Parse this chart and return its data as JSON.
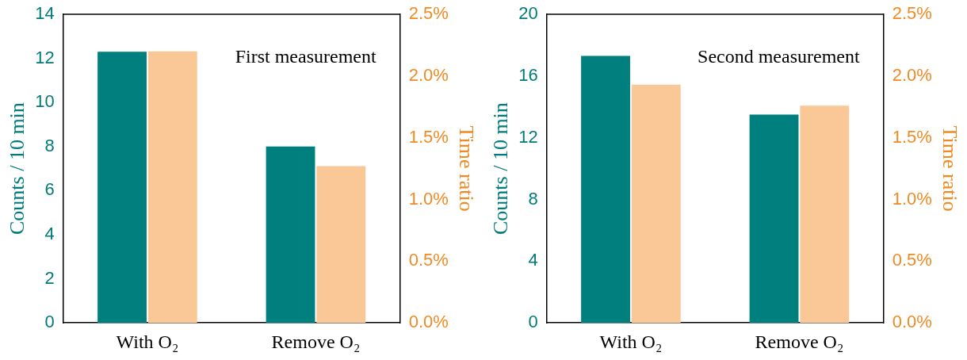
{
  "chart_data": [
    {
      "type": "bar",
      "categories": [
        "With O₂",
        "Remove O₂"
      ],
      "ylabel": "Counts / 10 min",
      "y2label": "Time ratio",
      "series": [
        {
          "color": "#007f7f",
          "values": [
            12.3,
            8.0
          ]
        },
        {
          "color": "#f9c896",
          "values": [
            2.2,
            1.27
          ],
          "axis": "y2"
        }
      ],
      "ylim": [
        0,
        14
      ],
      "yticks": [
        0,
        2,
        4,
        6,
        8,
        10,
        12,
        14
      ],
      "y2lim": [
        0,
        2.5
      ],
      "y2ticks": [
        {
          "value": 0,
          "label": "0.0%"
        },
        {
          "value": 0.5,
          "label": "0.5%"
        },
        {
          "value": 1,
          "label": "1.0%"
        },
        {
          "value": 1.5,
          "label": "1.5%"
        },
        {
          "value": 2,
          "label": "2.0%"
        },
        {
          "value": 2.5,
          "label": "2.5%"
        }
      ],
      "annotations": [
        "First measurement"
      ],
      "legend": false,
      "grid": false
    },
    {
      "type": "bar",
      "categories": [
        "With O₂",
        "Remove O₂"
      ],
      "ylabel": "Counts / 10 min",
      "y2label": "Time ratio",
      "series": [
        {
          "color": "#007f7f",
          "values": [
            17.3,
            13.5
          ]
        },
        {
          "color": "#f9c896",
          "values": [
            1.93,
            1.76
          ],
          "axis": "y2"
        }
      ],
      "ylim": [
        0,
        20
      ],
      "yticks": [
        0,
        4,
        8,
        12,
        16,
        20
      ],
      "y2lim": [
        0,
        2.5
      ],
      "y2ticks": [
        {
          "value": 0,
          "label": "0.0%"
        },
        {
          "value": 0.5,
          "label": "0.5%"
        },
        {
          "value": 1,
          "label": "1.0%"
        },
        {
          "value": 1.5,
          "label": "1.5%"
        },
        {
          "value": 2,
          "label": "2.0%"
        },
        {
          "value": 2.5,
          "label": "2.5%"
        }
      ],
      "annotations": [
        "Second measurement"
      ],
      "legend": false,
      "grid": false
    }
  ]
}
